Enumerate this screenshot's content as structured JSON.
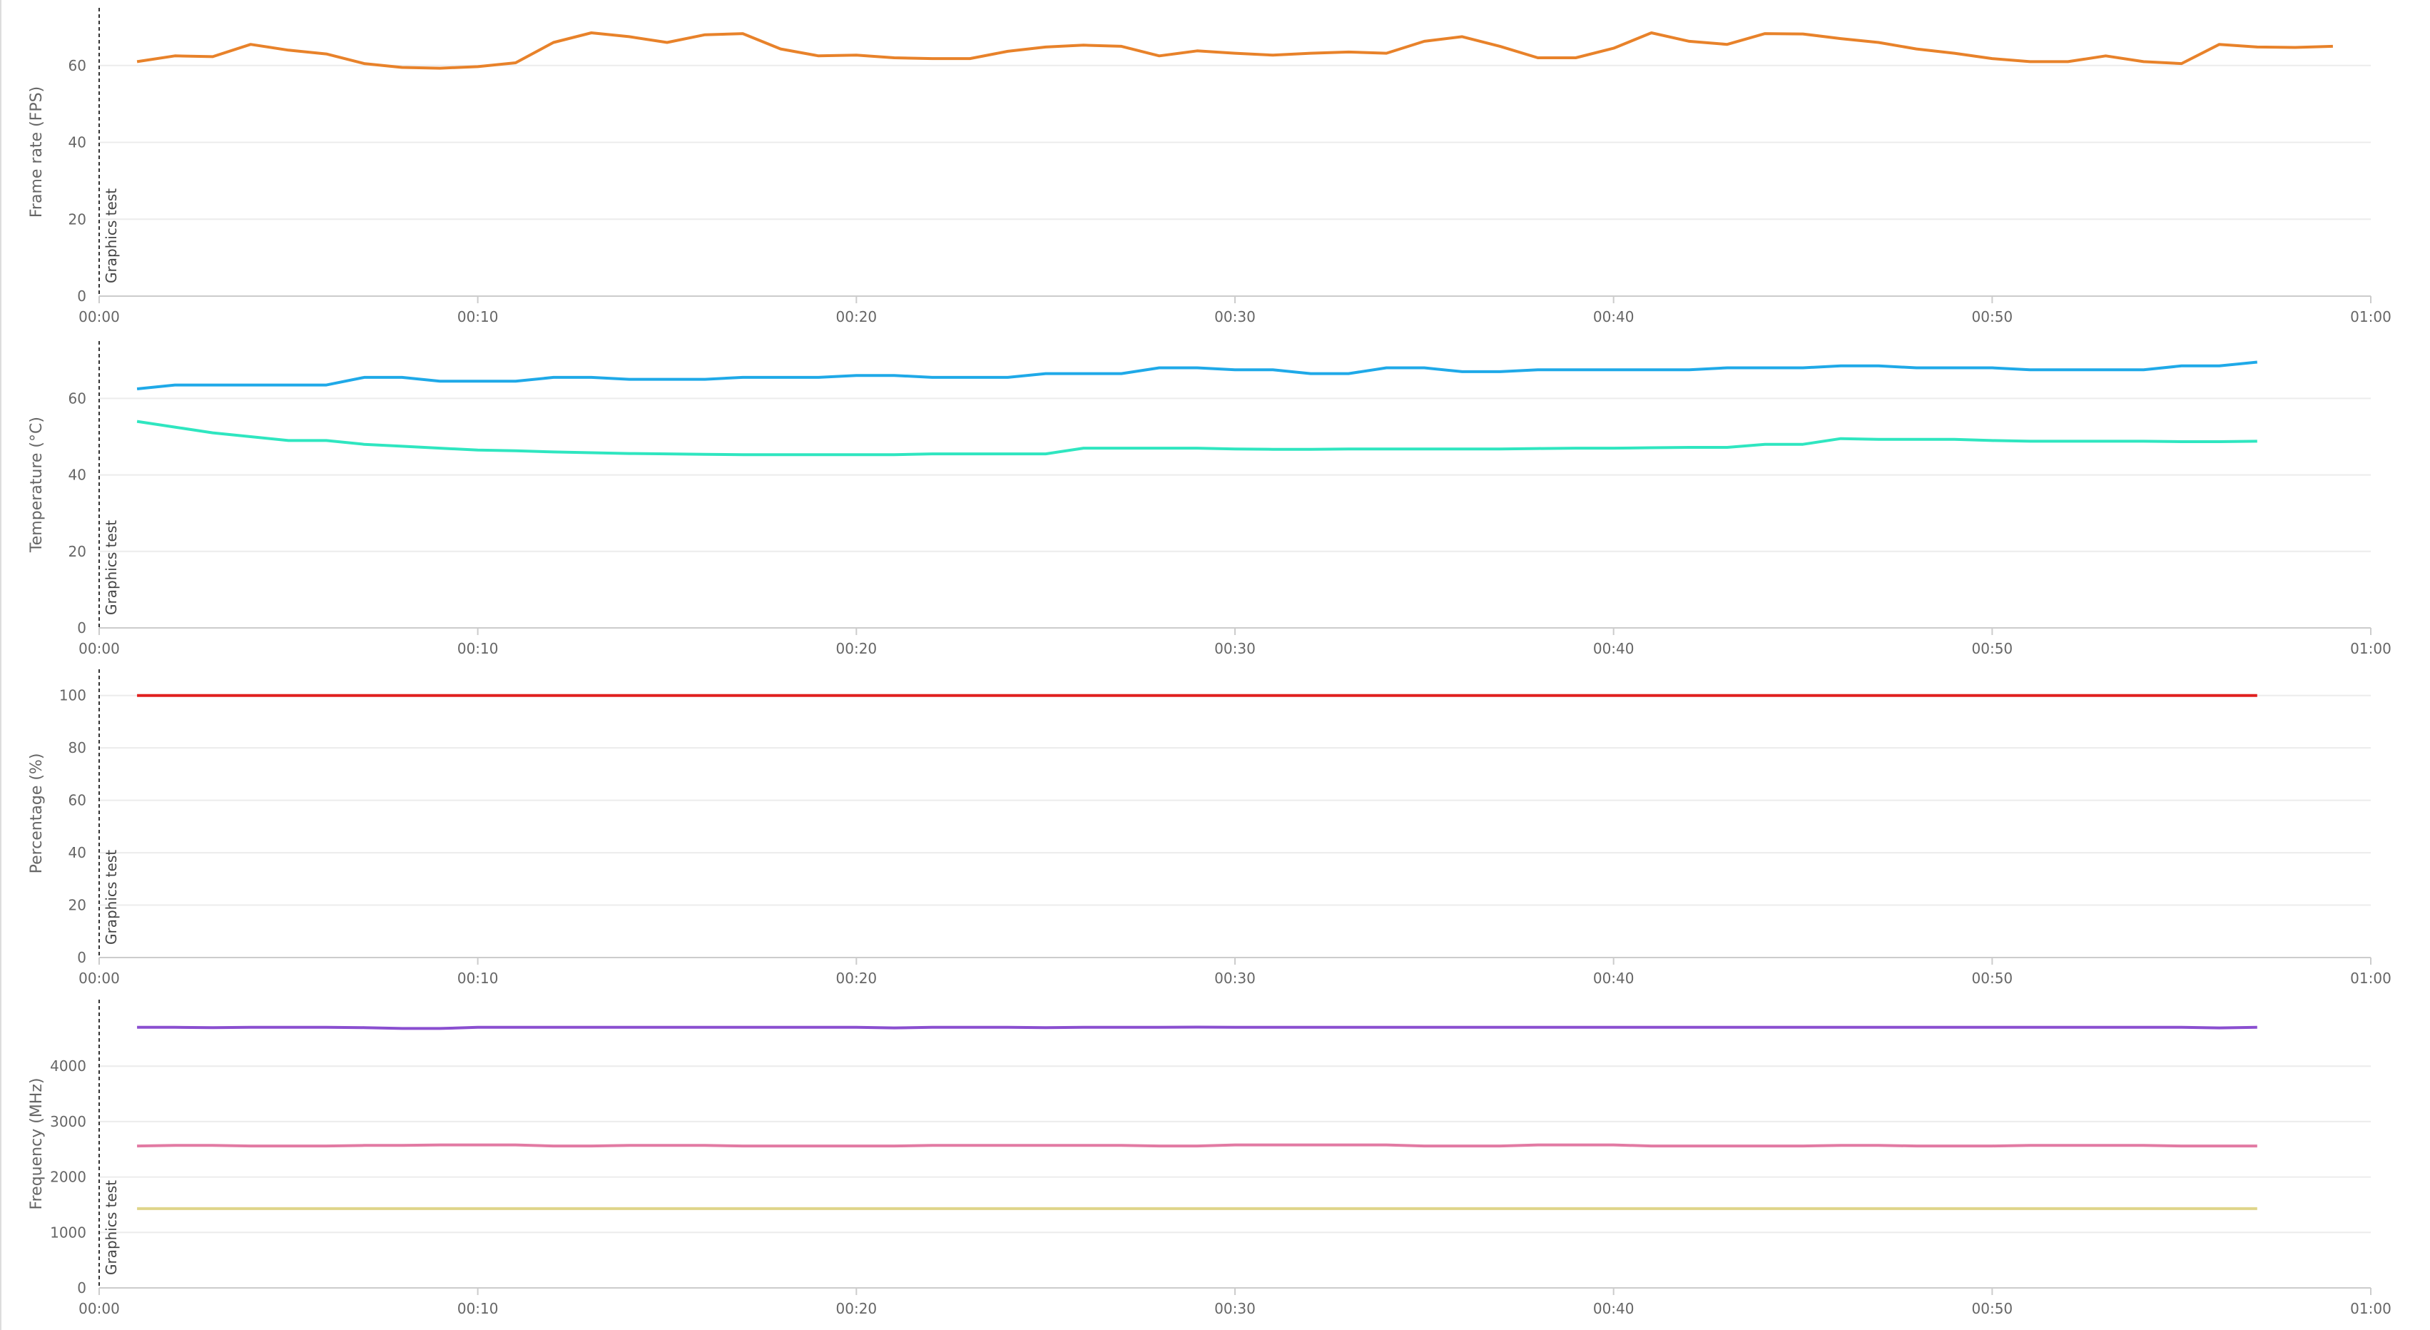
{
  "chart_data": [
    {
      "type": "line",
      "y_label": "Frame rate (FPS)",
      "annotation": "Graphics test",
      "grid": true,
      "xlim": [
        0,
        60
      ],
      "ylim": [
        0,
        75
      ],
      "yticks": [
        0,
        20,
        40,
        60
      ],
      "xticks": [
        {
          "value": 0,
          "label": "00:00"
        },
        {
          "value": 10,
          "label": "00:10"
        },
        {
          "value": 20,
          "label": "00:20"
        },
        {
          "value": 30,
          "label": "00:30"
        },
        {
          "value": 40,
          "label": "00:40"
        },
        {
          "value": 50,
          "label": "00:50"
        },
        {
          "value": 60,
          "label": "01:00"
        }
      ],
      "x": [
        1,
        2,
        3,
        4,
        5,
        6,
        7,
        8,
        9,
        10,
        11,
        12,
        13,
        14,
        15,
        16,
        17,
        18,
        19,
        20,
        21,
        22,
        23,
        24,
        25,
        26,
        27,
        28,
        29,
        30,
        31,
        32,
        33,
        34,
        35,
        36,
        37,
        38,
        39,
        40,
        41,
        42,
        43,
        44,
        45,
        46,
        47,
        48,
        49,
        50,
        51,
        52,
        53,
        54,
        55,
        56,
        57,
        58,
        59
      ],
      "series": [
        {
          "color": "#e8822a",
          "values": [
            61,
            62.5,
            62.3,
            65.5,
            64,
            63,
            60.5,
            59.5,
            59.3,
            59.7,
            60.7,
            66,
            68.5,
            67.5,
            66,
            68,
            68.3,
            64.3,
            62.5,
            62.7,
            62,
            61.8,
            61.8,
            63.7,
            64.8,
            65.3,
            65,
            62.5,
            63.8,
            63.2,
            62.7,
            63.2,
            63.5,
            63.2,
            66.3,
            67.5,
            65,
            62,
            62,
            64.5,
            68.5,
            66.3,
            65.5,
            68.3,
            68.2,
            67,
            66,
            64.3,
            63.2,
            61.8,
            61,
            61,
            62.5,
            61,
            60.5,
            65.5,
            64.8,
            64.7,
            65
          ]
        }
      ]
    },
    {
      "type": "line",
      "y_label": "Temperature (°C)",
      "annotation": "Graphics test",
      "grid": true,
      "xlim": [
        0,
        60
      ],
      "ylim": [
        0,
        75
      ],
      "yticks": [
        0,
        20,
        40,
        60
      ],
      "xticks": [
        {
          "value": 0,
          "label": "00:00"
        },
        {
          "value": 10,
          "label": "00:10"
        },
        {
          "value": 20,
          "label": "00:20"
        },
        {
          "value": 30,
          "label": "00:30"
        },
        {
          "value": 40,
          "label": "00:40"
        },
        {
          "value": 50,
          "label": "00:50"
        },
        {
          "value": 60,
          "label": "01:00"
        }
      ],
      "x": [
        1,
        2,
        3,
        4,
        5,
        6,
        7,
        8,
        9,
        10,
        11,
        12,
        13,
        14,
        15,
        16,
        17,
        18,
        19,
        20,
        21,
        22,
        23,
        24,
        25,
        26,
        27,
        28,
        29,
        30,
        31,
        32,
        33,
        34,
        35,
        36,
        37,
        38,
        39,
        40,
        41,
        42,
        43,
        44,
        45,
        46,
        47,
        48,
        49,
        50,
        51,
        52,
        53,
        54,
        55,
        56,
        57
      ],
      "series": [
        {
          "color": "#1fa9e8",
          "values": [
            62.5,
            63.5,
            63.5,
            63.5,
            63.5,
            63.5,
            65.5,
            65.5,
            64.5,
            64.5,
            64.5,
            65.5,
            65.5,
            65,
            65,
            65,
            65.5,
            65.5,
            65.5,
            66,
            66,
            65.5,
            65.5,
            65.5,
            66.5,
            66.5,
            66.5,
            68,
            68,
            67.5,
            67.5,
            66.5,
            66.5,
            68,
            68,
            67,
            67,
            67.5,
            67.5,
            67.5,
            67.5,
            67.5,
            68,
            68,
            68,
            68.5,
            68.5,
            68,
            68,
            68,
            67.5,
            67.5,
            67.5,
            67.5,
            68.5,
            68.5,
            69.5
          ]
        },
        {
          "color": "#2fe6c0",
          "values": [
            54,
            52.5,
            51,
            50,
            49,
            49,
            48,
            47.5,
            47,
            46.5,
            46.3,
            46,
            45.8,
            45.6,
            45.5,
            45.4,
            45.3,
            45.3,
            45.3,
            45.3,
            45.3,
            45.5,
            45.5,
            45.5,
            45.5,
            47,
            47,
            47,
            47,
            46.8,
            46.7,
            46.7,
            46.8,
            46.8,
            46.8,
            46.8,
            46.8,
            46.9,
            47,
            47,
            47.1,
            47.2,
            47.2,
            48,
            48,
            49.5,
            49.3,
            49.3,
            49.3,
            49,
            48.8,
            48.8,
            48.8,
            48.8,
            48.7,
            48.7,
            48.8
          ]
        }
      ]
    },
    {
      "type": "line",
      "y_label": "Percentage (%)",
      "annotation": "Graphics test",
      "grid": true,
      "xlim": [
        0,
        60
      ],
      "ylim": [
        0,
        110
      ],
      "yticks": [
        0,
        20,
        40,
        60,
        80,
        100
      ],
      "xticks": [
        {
          "value": 0,
          "label": "00:00"
        },
        {
          "value": 10,
          "label": "00:10"
        },
        {
          "value": 20,
          "label": "00:20"
        },
        {
          "value": 30,
          "label": "00:30"
        },
        {
          "value": 40,
          "label": "00:40"
        },
        {
          "value": 50,
          "label": "00:50"
        },
        {
          "value": 60,
          "label": "01:00"
        }
      ],
      "x": [
        1,
        2,
        3,
        4,
        5,
        6,
        7,
        8,
        9,
        10,
        11,
        12,
        13,
        14,
        15,
        16,
        17,
        18,
        19,
        20,
        21,
        22,
        23,
        24,
        25,
        26,
        27,
        28,
        29,
        30,
        31,
        32,
        33,
        34,
        35,
        36,
        37,
        38,
        39,
        40,
        41,
        42,
        43,
        44,
        45,
        46,
        47,
        48,
        49,
        50,
        51,
        52,
        53,
        54,
        55,
        56,
        57
      ],
      "series": [
        {
          "color": "#e0201f",
          "values": [
            100,
            100,
            100,
            100,
            100,
            100,
            100,
            100,
            100,
            100,
            100,
            100,
            100,
            100,
            100,
            100,
            100,
            100,
            100,
            100,
            100,
            100,
            100,
            100,
            100,
            100,
            100,
            100,
            100,
            100,
            100,
            100,
            100,
            100,
            100,
            100,
            100,
            100,
            100,
            100,
            100,
            100,
            100,
            100,
            100,
            100,
            100,
            100,
            100,
            100,
            100,
            100,
            100,
            100,
            100,
            100,
            100
          ]
        }
      ]
    },
    {
      "type": "line",
      "y_label": "Frequency (MHz)",
      "annotation": "Graphics test",
      "grid": true,
      "xlim": [
        0,
        60
      ],
      "ylim": [
        0,
        5200
      ],
      "yticks": [
        0,
        1000,
        2000,
        3000,
        4000
      ],
      "xticks": [
        {
          "value": 0,
          "label": "00:00"
        },
        {
          "value": 10,
          "label": "00:10"
        },
        {
          "value": 20,
          "label": "00:20"
        },
        {
          "value": 30,
          "label": "00:30"
        },
        {
          "value": 40,
          "label": "00:40"
        },
        {
          "value": 50,
          "label": "00:50"
        },
        {
          "value": 60,
          "label": "01:00"
        }
      ],
      "x": [
        1,
        2,
        3,
        4,
        5,
        6,
        7,
        8,
        9,
        10,
        11,
        12,
        13,
        14,
        15,
        16,
        17,
        18,
        19,
        20,
        21,
        22,
        23,
        24,
        25,
        26,
        27,
        28,
        29,
        30,
        31,
        32,
        33,
        34,
        35,
        36,
        37,
        38,
        39,
        40,
        41,
        42,
        43,
        44,
        45,
        46,
        47,
        48,
        49,
        50,
        51,
        52,
        53,
        54,
        55,
        56,
        57
      ],
      "series": [
        {
          "color": "#8a4fd0",
          "values": [
            4700,
            4700,
            4695,
            4700,
            4700,
            4700,
            4695,
            4680,
            4680,
            4700,
            4700,
            4700,
            4700,
            4700,
            4700,
            4700,
            4700,
            4700,
            4700,
            4700,
            4690,
            4700,
            4700,
            4700,
            4695,
            4700,
            4700,
            4700,
            4705,
            4700,
            4700,
            4700,
            4700,
            4700,
            4700,
            4700,
            4700,
            4700,
            4700,
            4700,
            4700,
            4700,
            4700,
            4700,
            4700,
            4700,
            4700,
            4700,
            4700,
            4700,
            4700,
            4700,
            4700,
            4700,
            4700,
            4690,
            4700
          ]
        },
        {
          "color": "#e27aa3",
          "values": [
            2560,
            2570,
            2570,
            2560,
            2560,
            2560,
            2570,
            2570,
            2580,
            2580,
            2580,
            2560,
            2560,
            2570,
            2570,
            2570,
            2560,
            2560,
            2560,
            2560,
            2560,
            2570,
            2570,
            2570,
            2570,
            2570,
            2570,
            2560,
            2560,
            2580,
            2580,
            2580,
            2580,
            2580,
            2560,
            2560,
            2560,
            2580,
            2580,
            2580,
            2560,
            2560,
            2560,
            2560,
            2560,
            2570,
            2570,
            2560,
            2560,
            2560,
            2570,
            2570,
            2570,
            2570,
            2560,
            2560,
            2560
          ]
        },
        {
          "color": "#dfd58a",
          "values": [
            1430,
            1430,
            1430,
            1430,
            1430,
            1430,
            1430,
            1430,
            1430,
            1430,
            1430,
            1430,
            1430,
            1430,
            1430,
            1430,
            1430,
            1430,
            1430,
            1430,
            1430,
            1430,
            1430,
            1430,
            1430,
            1430,
            1430,
            1430,
            1430,
            1430,
            1430,
            1430,
            1430,
            1430,
            1430,
            1430,
            1430,
            1430,
            1430,
            1430,
            1430,
            1430,
            1430,
            1430,
            1430,
            1430,
            1430,
            1430,
            1430,
            1430,
            1430,
            1430,
            1430,
            1430,
            1430,
            1430,
            1430
          ]
        }
      ]
    }
  ]
}
